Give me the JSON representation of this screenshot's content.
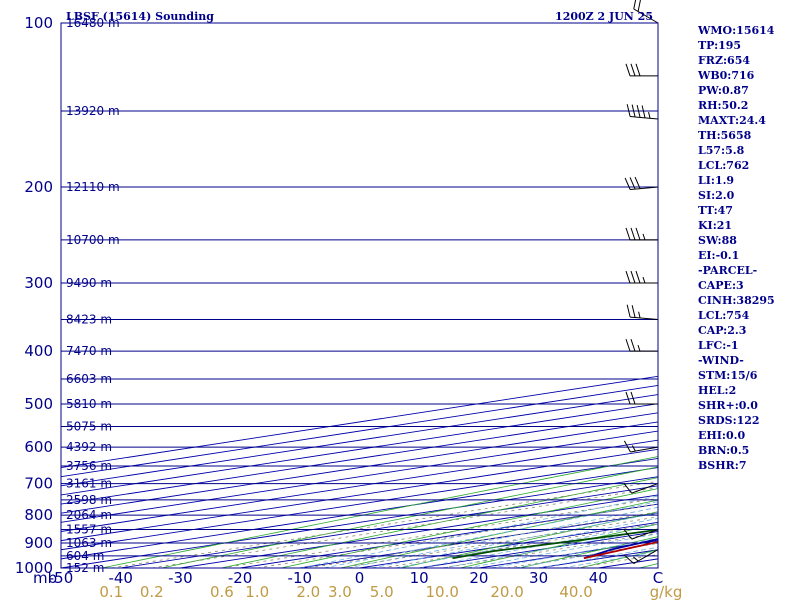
{
  "station_title": "LBSF (15614) Sounding",
  "time_title": "1200Z  2 JUN 25",
  "colors": {
    "frame": "#00008b",
    "isobar": "#00008b",
    "isotherm": "#0000aa",
    "dry_adiabat": "#2eaa2e",
    "moist_adiabat": "#6bb0e0",
    "mixing_ratio": "#8a8a6a",
    "temperature": "#b00000",
    "dewpoint": "#004d00",
    "parcel": "#0000a0",
    "wind": "#000000",
    "mixing_label": "#c09a45"
  },
  "chart_data": {
    "type": "skew-t",
    "pressure_axis": {
      "scale": "log",
      "range_hpa": [
        1000,
        100
      ],
      "ticks": [
        "100",
        "200",
        "300",
        "400",
        "500",
        "600",
        "700",
        "800",
        "900",
        "1000"
      ]
    },
    "temperature_axis": {
      "unit": "C",
      "range": [
        -50,
        50
      ],
      "ticks": [
        "-50",
        "-40",
        "-30",
        "-20",
        "-10",
        "0",
        "10",
        "20",
        "30",
        "40",
        "C"
      ]
    },
    "axis_corner_label": "mb",
    "mixing_ratio_labels": [
      "0.1",
      "0.2",
      "0.6",
      "1.0",
      "2.0",
      "3.0",
      "5.0",
      "10.0",
      "20.0",
      "40.0",
      "g/kg"
    ],
    "height_labels": [
      {
        "p": 100,
        "h": "16480 m"
      },
      {
        "p": 145,
        "h": "13920 m"
      },
      {
        "p": 200,
        "h": "12110 m"
      },
      {
        "p": 250,
        "h": "10700 m"
      },
      {
        "p": 300,
        "h": "9490 m"
      },
      {
        "p": 350,
        "h": "8423 m"
      },
      {
        "p": 400,
        "h": "7470 m"
      },
      {
        "p": 450,
        "h": "6603 m"
      },
      {
        "p": 500,
        "h": "5810 m"
      },
      {
        "p": 550,
        "h": "5075 m"
      },
      {
        "p": 600,
        "h": "4392 m"
      },
      {
        "p": 650,
        "h": "3756 m"
      },
      {
        "p": 700,
        "h": "3161 m"
      },
      {
        "p": 750,
        "h": "2598 m"
      },
      {
        "p": 800,
        "h": "2064 m"
      },
      {
        "p": 850,
        "h": "1557 m"
      },
      {
        "p": 900,
        "h": "1063 m"
      },
      {
        "p": 950,
        "h": "604 m"
      },
      {
        "p": 1000,
        "h": "152 m"
      }
    ],
    "temperature_profile": [
      [
        960,
        27
      ],
      [
        925,
        24
      ],
      [
        880,
        20
      ],
      [
        850,
        17
      ],
      [
        800,
        14
      ],
      [
        750,
        12.5
      ],
      [
        700,
        10
      ],
      [
        650,
        7.5
      ],
      [
        600,
        4
      ],
      [
        550,
        0
      ],
      [
        500,
        -4
      ],
      [
        450,
        -9
      ],
      [
        400,
        -13.5
      ],
      [
        350,
        -20
      ],
      [
        300,
        -27
      ],
      [
        250,
        -36
      ],
      [
        220,
        -44
      ],
      [
        200,
        -48
      ],
      [
        180,
        -47
      ],
      [
        160,
        -40
      ],
      [
        145,
        -34
      ],
      [
        130,
        -33
      ],
      [
        115,
        -31
      ],
      [
        100,
        -25
      ]
    ],
    "dewpoint_profile": [
      [
        960,
        5
      ],
      [
        930,
        4
      ],
      [
        880,
        7
      ],
      [
        830,
        9
      ],
      [
        800,
        10
      ],
      [
        770,
        8
      ],
      [
        740,
        5
      ],
      [
        710,
        1
      ],
      [
        700,
        -3
      ],
      [
        695,
        -6
      ],
      [
        690,
        -2
      ],
      [
        685,
        -8
      ],
      [
        680,
        -1
      ],
      [
        675,
        -9
      ],
      [
        670,
        -3
      ],
      [
        665,
        -10
      ],
      [
        660,
        -4
      ],
      [
        650,
        -12
      ],
      [
        620,
        -9
      ],
      [
        600,
        -14
      ],
      [
        570,
        -8
      ],
      [
        550,
        -15
      ],
      [
        520,
        -10
      ],
      [
        500,
        -14
      ],
      [
        480,
        -9
      ],
      [
        460,
        -19
      ],
      [
        450,
        -32
      ],
      [
        430,
        -18
      ],
      [
        400,
        -29
      ],
      [
        370,
        -29
      ],
      [
        350,
        -33
      ],
      [
        320,
        -34
      ],
      [
        300,
        -44
      ],
      [
        270,
        -42
      ],
      [
        250,
        -45
      ],
      [
        230,
        -53
      ],
      [
        210,
        -58
      ],
      [
        200,
        -56
      ],
      [
        185,
        -60
      ],
      [
        165,
        -66
      ],
      [
        150,
        -65
      ],
      [
        140,
        -64
      ],
      [
        125,
        -62
      ],
      [
        110,
        -60
      ],
      [
        100,
        -52
      ]
    ],
    "parcel_profile": [
      [
        960,
        27
      ],
      [
        925,
        22
      ],
      [
        850,
        15
      ],
      [
        800,
        10
      ],
      [
        750,
        7
      ],
      [
        700,
        5
      ],
      [
        650,
        2.5
      ],
      [
        600,
        0
      ],
      [
        550,
        -3.5
      ],
      [
        500,
        -7.5
      ],
      [
        450,
        -12
      ],
      [
        400,
        -17.5
      ],
      [
        350,
        -24
      ],
      [
        300,
        -31
      ],
      [
        250,
        -40
      ],
      [
        200,
        -51
      ],
      [
        150,
        -64
      ],
      [
        100,
        -80
      ]
    ],
    "wind_barbs": [
      {
        "p": 925,
        "dir": 240,
        "kt": 15
      },
      {
        "p": 850,
        "dir": 250,
        "kt": 10
      },
      {
        "p": 700,
        "dir": 250,
        "kt": 10
      },
      {
        "p": 600,
        "dir": 260,
        "kt": 15
      },
      {
        "p": 500,
        "dir": 270,
        "kt": 20
      },
      {
        "p": 400,
        "dir": 270,
        "kt": 25
      },
      {
        "p": 350,
        "dir": 275,
        "kt": 25
      },
      {
        "p": 300,
        "dir": 270,
        "kt": 35
      },
      {
        "p": 250,
        "dir": 270,
        "kt": 35
      },
      {
        "p": 200,
        "dir": 265,
        "kt": 30
      },
      {
        "p": 150,
        "dir": 275,
        "kt": 45
      },
      {
        "p": 125,
        "dir": 270,
        "kt": 30
      },
      {
        "p": 100,
        "dir": 300,
        "kt": 20
      }
    ]
  },
  "indices": [
    "WMO:15614",
    "TP:195",
    "FRZ:654",
    "WB0:716",
    "PW:0.87",
    "RH:50.2",
    "MAXT:24.4",
    "TH:5658",
    "L57:5.8",
    "LCL:762",
    "LI:1.9",
    "SI:2.0",
    "TT:47",
    "KI:21",
    "SW:88",
    "EI:-0.1",
    "-PARCEL-",
    "CAPE:3",
    "CINH:38295",
    "LCL:754",
    "CAP:2.3",
    "LFC:-1",
    "-WIND-",
    "STM:15/6",
    "HEL:2",
    "SHR+:0.0",
    "SRDS:122",
    "EHI:0.0",
    "BRN:0.5",
    "BSHR:7"
  ]
}
